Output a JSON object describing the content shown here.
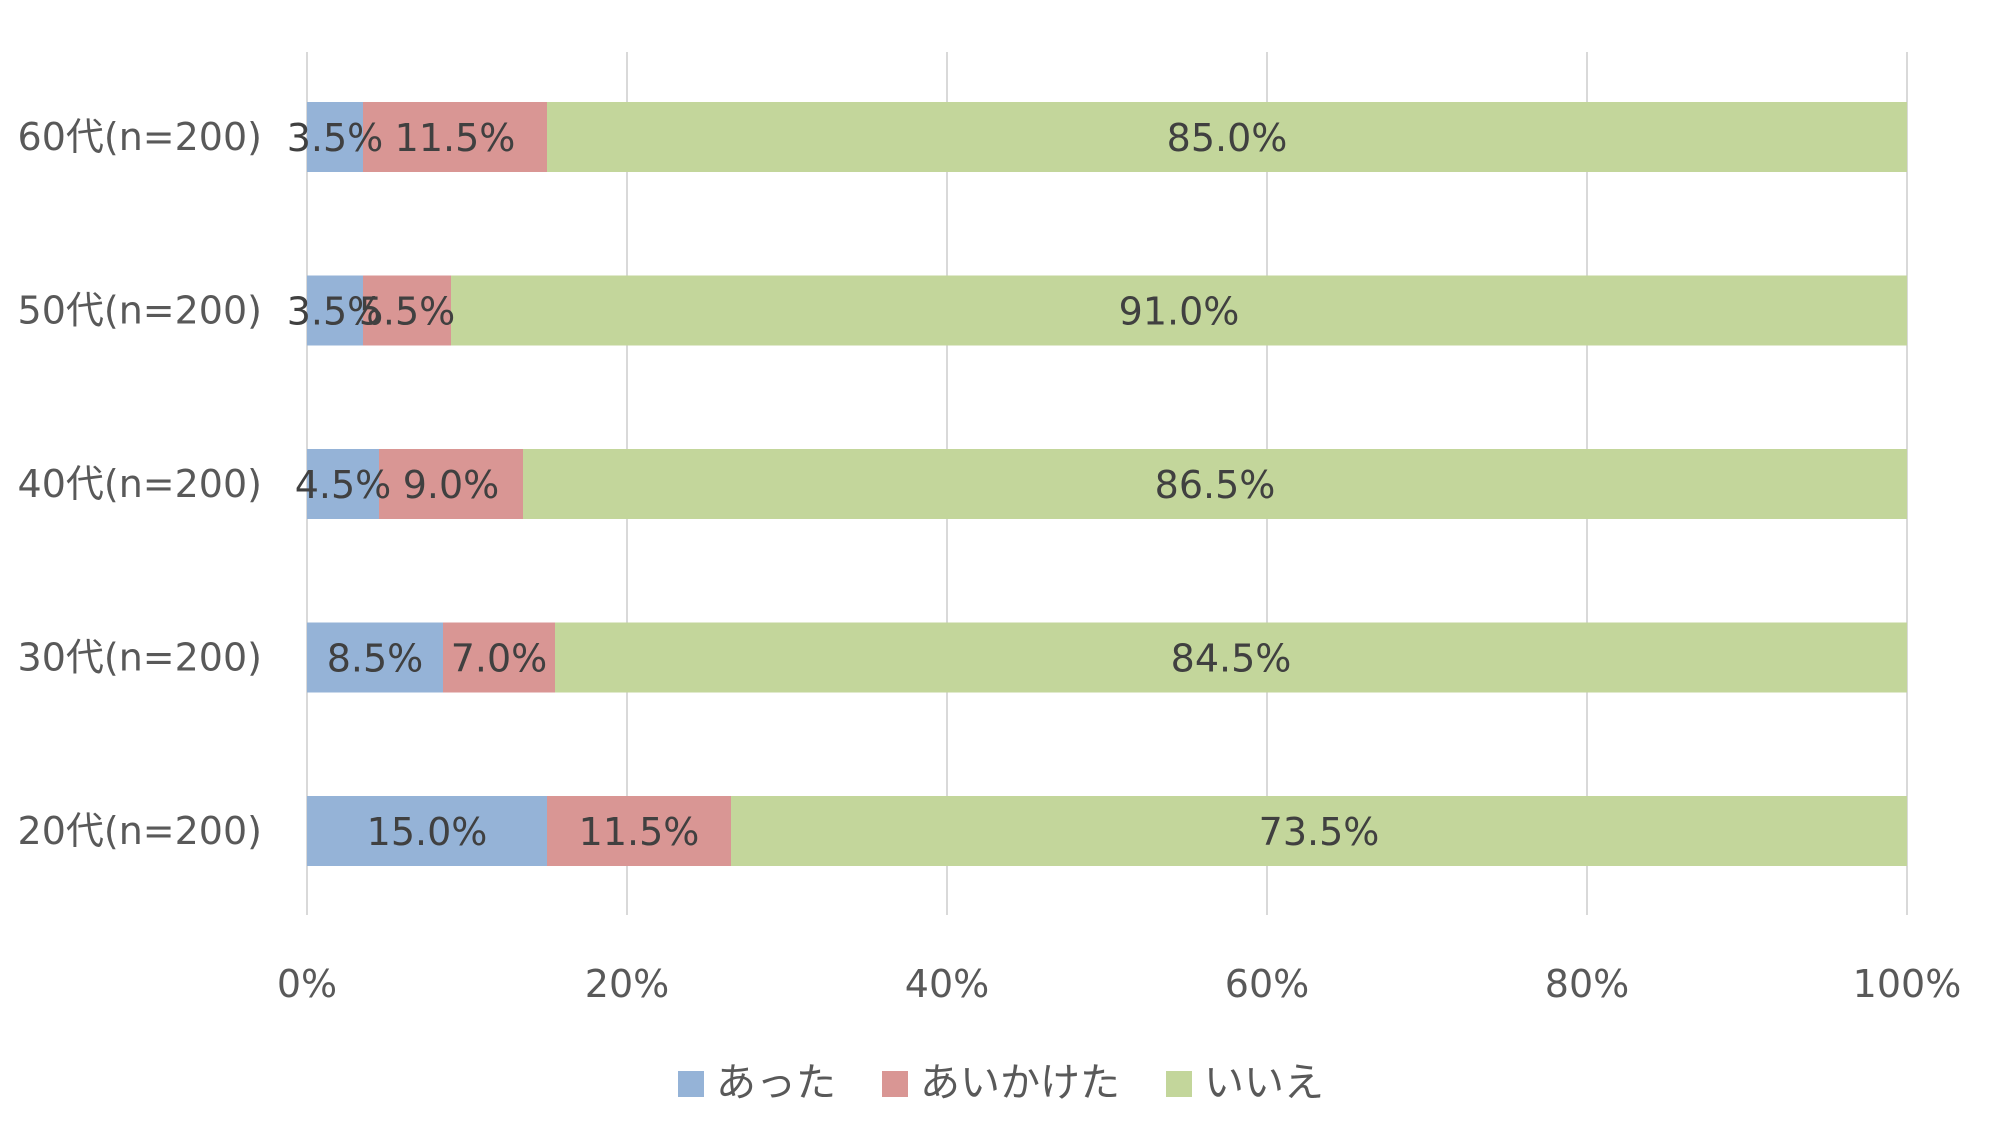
{
  "chart_data": {
    "type": "bar",
    "orientation": "horizontal",
    "stacked": "percent",
    "categories": [
      "60代(n=200)",
      "50代(n=200)",
      "40代(n=200)",
      "30代(n=200)",
      "20代(n=200)"
    ],
    "series": [
      {
        "name": "あった",
        "color": "#95b3d7",
        "values": [
          3.5,
          3.5,
          4.5,
          8.5,
          15.0
        ],
        "labels": [
          "3.5%",
          "3.5%",
          "4.5%",
          "8.5%",
          "15.0%"
        ]
      },
      {
        "name": "あいかけた",
        "color": "#d99694",
        "values": [
          11.5,
          5.5,
          9.0,
          7.0,
          11.5
        ],
        "labels": [
          "11.5%",
          "5.5%",
          "9.0%",
          "7.0%",
          "11.5%"
        ]
      },
      {
        "name": "いいえ",
        "color": "#c3d69b",
        "values": [
          85.0,
          91.0,
          86.5,
          84.5,
          73.5
        ],
        "labels": [
          "85.0%",
          "91.0%",
          "86.5%",
          "84.5%",
          "73.5%"
        ]
      }
    ],
    "x_ticks": [
      0,
      20,
      40,
      60,
      80,
      100
    ],
    "x_tick_labels": [
      "0%",
      "20%",
      "40%",
      "60%",
      "80%",
      "100%"
    ],
    "xlim": [
      0,
      100
    ],
    "grid": true,
    "legend_position": "bottom",
    "title": "",
    "xlabel": "",
    "ylabel": ""
  }
}
